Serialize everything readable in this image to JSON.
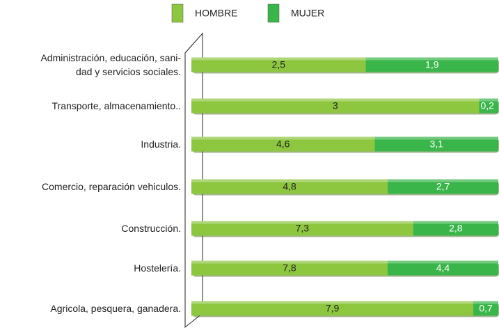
{
  "chart_data": {
    "type": "bar",
    "categories": [
      "Administración, educación, sani-\ndad y servicios sociales.",
      "Transporte, almacenamiento..",
      "Industria.",
      "Comercio, reparación vehiculos.",
      "Construcción.",
      "Hostelería.",
      "Agricola, pesquera, ganadera."
    ],
    "series": [
      {
        "name": "HOMBRE",
        "color": "#8dc63f",
        "values": [
          2.5,
          3,
          4.6,
          4.8,
          7.3,
          7.8,
          7.9
        ],
        "value_labels": [
          "2,5",
          "3",
          "4,6",
          "4,8",
          "7,3",
          "7,8",
          "7,9"
        ]
      },
      {
        "name": "MUJER",
        "color": "#39b54a",
        "values": [
          1.9,
          0.2,
          3.1,
          2.7,
          2.8,
          4.4,
          0.7
        ],
        "value_labels": [
          "1,9",
          "0,2",
          "3,1",
          "2,7",
          "2,8",
          "4,4",
          "0,7"
        ]
      }
    ],
    "stacking": "percent"
  }
}
